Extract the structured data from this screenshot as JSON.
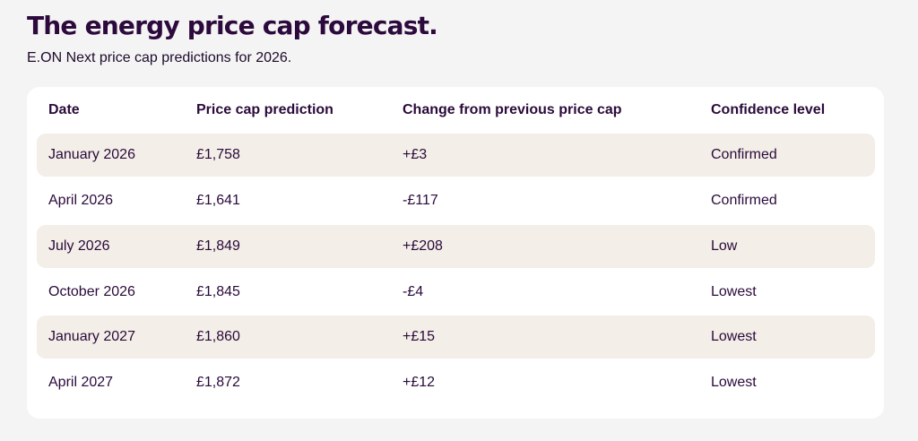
{
  "page": {
    "title": "The energy price cap forecast.",
    "subtitle": "E.ON Next price cap predictions for 2026."
  },
  "table": {
    "columns": [
      "Date",
      "Price cap prediction",
      "Change from previous price cap",
      "Confidence level"
    ],
    "rows": [
      [
        "January 2026",
        "£1,758",
        "+£3",
        "Confirmed"
      ],
      [
        "April 2026",
        "£1,641",
        "-£117",
        "Confirmed"
      ],
      [
        "July 2026",
        "£1,849",
        "+£208",
        "Low"
      ],
      [
        "October 2026",
        "£1,845",
        "-£4",
        "Lowest"
      ],
      [
        "January 2027",
        "£1,860",
        "+£15",
        "Lowest"
      ],
      [
        "April 2027",
        "£1,872",
        "+£12",
        "Lowest"
      ]
    ]
  },
  "colors": {
    "title": "#2d0a3d",
    "text": "#2a0a3a",
    "row_shade": "#f3eee7",
    "card": "#ffffff",
    "background": "#f4f4f4"
  }
}
